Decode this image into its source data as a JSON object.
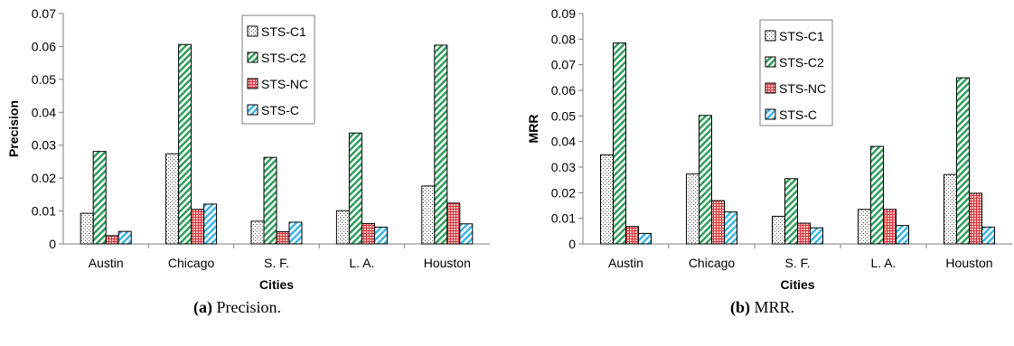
{
  "colors": {
    "STS-C1": "#ffffff",
    "STS-C2": "#2e9e5b",
    "STS-NC": "#d9343a",
    "STS-C": "#3ab4e6",
    "axis": "#7f7f7f"
  },
  "patterns": {
    "STS-C1": "dots",
    "STS-C2": "diagonal-hatch",
    "STS-NC": "grid",
    "STS-C": "diagonal-hatch"
  },
  "captions": [
    {
      "label": "(a)",
      "text": " Precision."
    },
    {
      "label": "(b)",
      "text": " MRR."
    }
  ],
  "chart_data": [
    {
      "type": "bar",
      "categories": [
        "Austin",
        "Chicago",
        "S. F.",
        "L. A.",
        "Houston"
      ],
      "xlabel": "Cities",
      "ylabel": "Precision",
      "ylim": [
        0,
        0.07
      ],
      "yticks": [
        "0",
        "0.01",
        "0.02",
        "0.03",
        "0.04",
        "0.05",
        "0.06",
        "0.07"
      ],
      "legend_position": "top-center",
      "grid": false,
      "series": [
        {
          "name": "STS-C1",
          "values": [
            0.0093,
            0.0274,
            0.0069,
            0.0101,
            0.0176
          ]
        },
        {
          "name": "STS-C2",
          "values": [
            0.0281,
            0.0606,
            0.0263,
            0.0337,
            0.0604
          ]
        },
        {
          "name": "STS-NC",
          "values": [
            0.0025,
            0.0105,
            0.0037,
            0.0062,
            0.0124
          ]
        },
        {
          "name": "STS-C",
          "values": [
            0.0038,
            0.0121,
            0.0066,
            0.0051,
            0.0061
          ]
        }
      ]
    },
    {
      "type": "bar",
      "categories": [
        "Austin",
        "Chicago",
        "S. F.",
        "L. A.",
        "Houston"
      ],
      "xlabel": "Cities",
      "ylabel": "MRR",
      "ylim": [
        0,
        0.09
      ],
      "yticks": [
        "0",
        "0.01",
        "0.02",
        "0.03",
        "0.04",
        "0.05",
        "0.06",
        "0.07",
        "0.08",
        "0.09"
      ],
      "legend_position": "top-center",
      "grid": false,
      "series": [
        {
          "name": "STS-C1",
          "values": [
            0.0348,
            0.0273,
            0.0108,
            0.0135,
            0.0271
          ]
        },
        {
          "name": "STS-C2",
          "values": [
            0.0785,
            0.0502,
            0.0255,
            0.0381,
            0.0649
          ]
        },
        {
          "name": "STS-NC",
          "values": [
            0.0068,
            0.0169,
            0.0081,
            0.0135,
            0.0198
          ]
        },
        {
          "name": "STS-C",
          "values": [
            0.0041,
            0.0125,
            0.0063,
            0.0072,
            0.0066
          ]
        }
      ]
    }
  ]
}
